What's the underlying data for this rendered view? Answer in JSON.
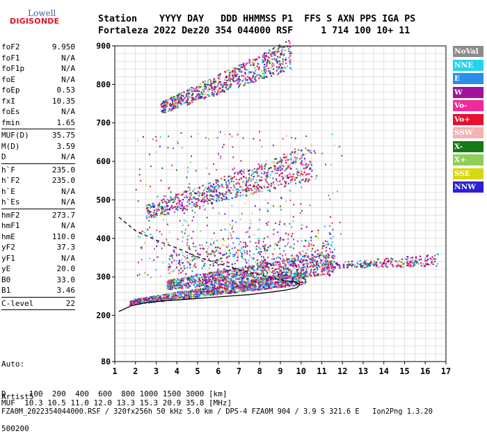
{
  "logo": {
    "line1": "Lowell",
    "line2": "DIGISONDE"
  },
  "header": {
    "line1": "Station    YYYY DAY   DDD HHMMSS P1  FFS S AXN PPS IGA PS",
    "line2": "Fortaleza 2022 Dez20 354 044000 RSF     1 714 100 10+ 11"
  },
  "params": [
    {
      "label": "foF2",
      "value": "9.950"
    },
    {
      "label": "foF1",
      "value": "N/A"
    },
    {
      "label": "foF1p",
      "value": "N/A"
    },
    {
      "label": "foE",
      "value": "N/A"
    },
    {
      "label": "foEp",
      "value": "0.53"
    },
    {
      "label": "fxI",
      "value": "10.35"
    },
    {
      "label": "foEs",
      "value": "N/A"
    },
    {
      "label": "fmin",
      "value": "1.65"
    },
    {
      "sep": true
    },
    {
      "label": "MUF(D)",
      "value": "35.75"
    },
    {
      "label": "M(D)",
      "value": "3.59"
    },
    {
      "label": "D",
      "value": "N/A"
    },
    {
      "sep": true
    },
    {
      "label": "h`F",
      "value": "235.0"
    },
    {
      "label": "h`F2",
      "value": "235.0"
    },
    {
      "label": "h`E",
      "value": "N/A"
    },
    {
      "label": "h`Es",
      "value": "N/A"
    },
    {
      "sep": true
    },
    {
      "label": "hmF2",
      "value": "273.7"
    },
    {
      "label": "hmF1",
      "value": "N/A"
    },
    {
      "label": "hmE",
      "value": "110.0"
    },
    {
      "label": "yF2",
      "value": "37.3"
    },
    {
      "label": "yF1",
      "value": "N/A"
    },
    {
      "label": "yE",
      "value": "20.0"
    },
    {
      "label": "B0",
      "value": "33.0"
    },
    {
      "label": "B1",
      "value": "3.46"
    },
    {
      "sep": true
    },
    {
      "label": "C-level",
      "value": "22"
    },
    {
      "sep": true
    }
  ],
  "auto": {
    "line1": "Auto:",
    "line2": "Artist5",
    "line3": "500200"
  },
  "legend": [
    {
      "label": "NoVal",
      "color": "#8c8c8c"
    },
    {
      "label": "NNE",
      "color": "#22d3f2"
    },
    {
      "label": "E",
      "color": "#2b8ee8"
    },
    {
      "label": "W",
      "color": "#a0129e"
    },
    {
      "label": "Vo-",
      "color": "#f2299a"
    },
    {
      "label": "Vo+",
      "color": "#e8102e"
    },
    {
      "label": "SSW",
      "color": "#f4b2b2"
    },
    {
      "label": "X-",
      "color": "#157a15"
    },
    {
      "label": "X+",
      "color": "#8fce58"
    },
    {
      "label": "SSE",
      "color": "#d8d810"
    },
    {
      "label": "NNW",
      "color": "#2a20d8"
    }
  ],
  "bottom": {
    "dist_line": "D     100  200  400  600  800 1000 1500 3000 [km]",
    "muf_line": "MUF  10.3 10.5 11.0 12.0 13.3 15.3 20.9 35.8 [MHz]",
    "file_line": "FZA0M_2022354044000.RSF / 320fx256h 50 kHz 5.0 km / DPS-4 FZA0M 904 / 3.9 S 321.6 E   Ion2Png 1.3.20"
  },
  "chart_data": {
    "type": "scatter",
    "xlim": [
      1,
      17
    ],
    "ylim": [
      80,
      900
    ],
    "xticks": [
      1,
      2,
      3,
      4,
      5,
      6,
      7,
      8,
      9,
      10,
      11,
      12,
      13,
      14,
      15,
      16,
      17
    ],
    "yticks": [
      80,
      200,
      300,
      400,
      500,
      600,
      700,
      800,
      900
    ],
    "grid": true,
    "profile_curve": {
      "x": [
        1.2,
        1.8,
        2.5,
        3.5,
        4.5,
        5.5,
        6.5,
        7.5,
        8.5,
        9.3,
        9.8,
        9.95,
        9.7,
        9.2
      ],
      "y": [
        210,
        225,
        233,
        238,
        242,
        246,
        250,
        254,
        260,
        266,
        272,
        280,
        287,
        290
      ]
    },
    "model_curve": {
      "x": [
        1.2,
        2.0,
        3.0,
        4.0,
        5.0,
        6.0,
        7.0,
        8.0,
        9.0,
        9.95
      ],
      "y": [
        455,
        420,
        395,
        375,
        352,
        335,
        318,
        305,
        292,
        285
      ]
    },
    "traces": [
      {
        "name": "F2 O-trace",
        "x0": 1.7,
        "x1": 10.2,
        "h0": 235,
        "h1": 300,
        "w": 22
      },
      {
        "name": "F2 X-trace",
        "x0": 3.5,
        "x1": 11.6,
        "h0": 280,
        "h1": 340,
        "w": 40
      },
      {
        "name": "2F2",
        "x0": 2.5,
        "x1": 10.5,
        "h0": 470,
        "h1": 600,
        "w": 60
      },
      {
        "name": "3F2",
        "x0": 3.2,
        "x1": 9.5,
        "h0": 740,
        "h1": 880,
        "w": 50
      },
      {
        "name": "Es-like",
        "x0": 11.0,
        "x1": 16.6,
        "h0": 330,
        "h1": 345,
        "w": 20
      }
    ]
  }
}
